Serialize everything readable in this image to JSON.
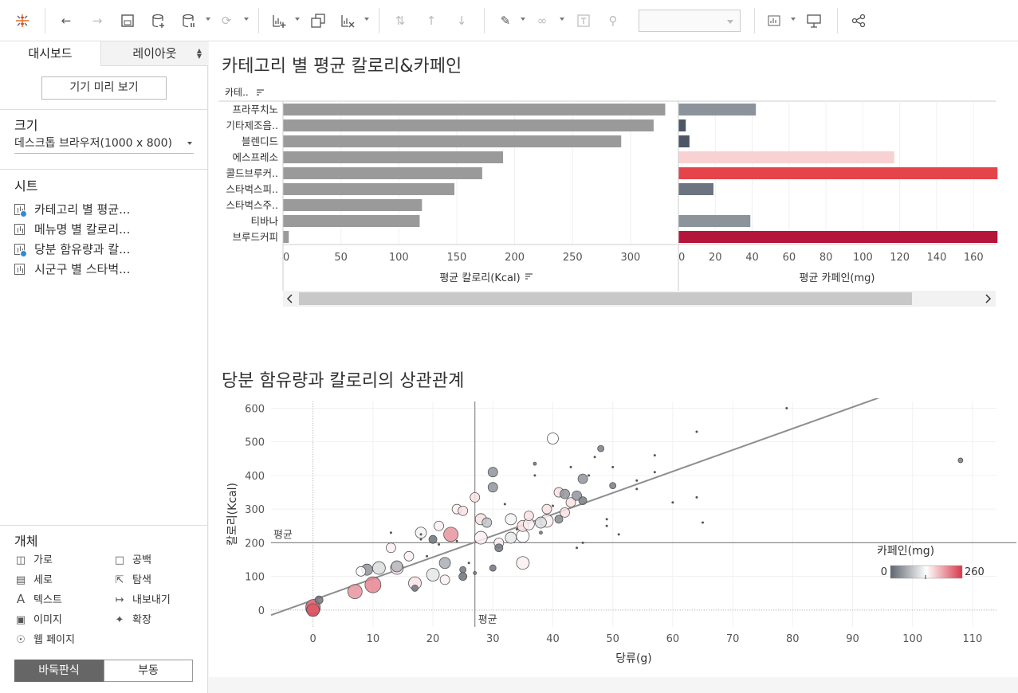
{
  "toolbar": {
    "icons": [
      "tableau-logo-icon",
      "undo-icon",
      "redo-icon",
      "save-icon",
      "new-datasource-icon",
      "pause-update-icon",
      "refresh-icon",
      "new-worksheet-icon",
      "duplicate-icon",
      "clear-icon",
      "swap-icon",
      "sort-asc-icon",
      "sort-desc-icon",
      "highlight-icon",
      "attach-icon",
      "text-label-icon",
      "pin-icon",
      "show-me-icon",
      "presentation-icon",
      "share-icon"
    ]
  },
  "sidebar": {
    "tab_dashboard": "대시보드",
    "tab_layout": "레이아웃",
    "device_preview": "기기 미리 보기",
    "size_label": "크기",
    "size_value": "데스크톱 브라우저(1000 x 800)",
    "sheets_label": "시트",
    "sheets": [
      "카테고리 별 평균...",
      "메뉴명 별 칼로리...",
      "당분 함유량과 칼...",
      "시군구 별 스타벅..."
    ],
    "objects_label": "개체",
    "objects": {
      "horizontal": "가로",
      "blank": "공백",
      "vertical": "세로",
      "navigation": "탐색",
      "text": "텍스트",
      "download": "내보내기",
      "image": "이미지",
      "extension": "확장",
      "webpage": "웹 페이지"
    },
    "tiled": "바둑판식",
    "floating": "부동"
  },
  "colors": {
    "accent": "#e5444b",
    "bar_gray": "#9a9a9a",
    "dark_red": "#b3153b",
    "legend_low": "#5f6670",
    "legend_high": "#d7384a"
  },
  "chart_data": [
    {
      "type": "bar",
      "title": "카테고리 별 평균 칼로리&카페인",
      "category_header": "카테..",
      "categories": [
        "프라푸치노",
        "기타제조음..",
        "블렌디드",
        "에스프레소",
        "콜드브루커..",
        "스타벅스피..",
        "스타벅스주..",
        "티바나",
        "브루드커피"
      ],
      "series": [
        {
          "name": "평균 칼로리(Kcal)",
          "values": [
            330,
            320,
            292,
            190,
            172,
            148,
            120,
            118,
            5
          ],
          "xlim": [
            0,
            340
          ],
          "ticks": [
            0,
            50,
            100,
            150,
            200,
            250,
            300
          ]
        },
        {
          "name": "평균 카페인(mg)",
          "values": [
            42,
            4,
            6,
            117,
            173,
            19,
            0,
            39,
            173
          ],
          "xlim": [
            0,
            172
          ],
          "ticks": [
            0,
            20,
            40,
            60,
            80,
            100,
            120,
            140,
            160
          ]
        }
      ],
      "xlabel_calorie": "평균 칼로리(Kcal)",
      "xlabel_caffeine": "평균 카페인(mg)"
    },
    {
      "type": "scatter",
      "title": "당분 함유량과 칼로리의 상관관계",
      "xlabel": "당류(g)",
      "ylabel": "칼로리(Kcal)",
      "xlim": [
        -7,
        114
      ],
      "ylim": [
        -50,
        620
      ],
      "xticks": [
        0,
        10,
        20,
        30,
        40,
        50,
        60,
        70,
        80,
        90,
        100,
        110
      ],
      "yticks": [
        0,
        100,
        200,
        300,
        400,
        500,
        600
      ],
      "ref_line_label": "평균",
      "ref_x": 27,
      "ref_y": 200,
      "trend": {
        "x0": -7,
        "y0": -15,
        "x1": 95,
        "y1": 635
      },
      "legend_title": "카페인(mg)",
      "legend_min": "0",
      "legend_max": "260",
      "points": [
        [
          0,
          5,
          260,
          9
        ],
        [
          0,
          10,
          220,
          9
        ],
        [
          0,
          0,
          240,
          8
        ],
        [
          1,
          30,
          0,
          5
        ],
        [
          7,
          55,
          200,
          9
        ],
        [
          8,
          115,
          10,
          6
        ],
        [
          9,
          120,
          40,
          7
        ],
        [
          10,
          75,
          210,
          10
        ],
        [
          11,
          125,
          100,
          8
        ],
        [
          13,
          185,
          20,
          6
        ],
        [
          13,
          230,
          0,
          1
        ],
        [
          14,
          125,
          30,
          8
        ],
        [
          14,
          130,
          70,
          7
        ],
        [
          16,
          160,
          20,
          6
        ],
        [
          17,
          80,
          150,
          8
        ],
        [
          17,
          65,
          0,
          4
        ],
        [
          18,
          230,
          120,
          7
        ],
        [
          18,
          210,
          0,
          1
        ],
        [
          18,
          225,
          0,
          1
        ],
        [
          19,
          160,
          0,
          1
        ],
        [
          20,
          105,
          110,
          8
        ],
        [
          20,
          210,
          10,
          5
        ],
        [
          21,
          250,
          20,
          6
        ],
        [
          21,
          195,
          0,
          1
        ],
        [
          22,
          140,
          60,
          7
        ],
        [
          22,
          90,
          20,
          6
        ],
        [
          23,
          225,
          200,
          9
        ],
        [
          24,
          300,
          20,
          6
        ],
        [
          24,
          205,
          0,
          1
        ],
        [
          25,
          295,
          30,
          6
        ],
        [
          25,
          100,
          10,
          5
        ],
        [
          25,
          120,
          0,
          4
        ],
        [
          26,
          140,
          0,
          1
        ],
        [
          27,
          335,
          30,
          6
        ],
        [
          27,
          110,
          0,
          2
        ],
        [
          28,
          215,
          140,
          8
        ],
        [
          28,
          270,
          150,
          7
        ],
        [
          29,
          260,
          80,
          6
        ],
        [
          30,
          410,
          40,
          6
        ],
        [
          30,
          365,
          40,
          6
        ],
        [
          30,
          125,
          0,
          4
        ],
        [
          31,
          185,
          0,
          5
        ],
        [
          31,
          200,
          20,
          6
        ],
        [
          32,
          315,
          0,
          1
        ],
        [
          33,
          270,
          120,
          7
        ],
        [
          33,
          215,
          110,
          7
        ],
        [
          34,
          240,
          0,
          1
        ],
        [
          35,
          220,
          130,
          8
        ],
        [
          35,
          140,
          140,
          8
        ],
        [
          35,
          250,
          150,
          7
        ],
        [
          36,
          280,
          30,
          6
        ],
        [
          36,
          255,
          140,
          7
        ],
        [
          37,
          400,
          0,
          1
        ],
        [
          37,
          435,
          0,
          2
        ],
        [
          38,
          230,
          0,
          2
        ],
        [
          38,
          260,
          100,
          7
        ],
        [
          39,
          300,
          30,
          6
        ],
        [
          39,
          265,
          140,
          8
        ],
        [
          40,
          510,
          130,
          7
        ],
        [
          40,
          310,
          0,
          1
        ],
        [
          41,
          350,
          30,
          6
        ],
        [
          41,
          270,
          30,
          5
        ],
        [
          42,
          290,
          30,
          6
        ],
        [
          42,
          345,
          40,
          6
        ],
        [
          43,
          320,
          30,
          6
        ],
        [
          43,
          425,
          0,
          1
        ],
        [
          44,
          340,
          40,
          6
        ],
        [
          44,
          185,
          0,
          1
        ],
        [
          45,
          325,
          20,
          5
        ],
        [
          45,
          390,
          40,
          6
        ],
        [
          45,
          200,
          0,
          1
        ],
        [
          46,
          400,
          0,
          1
        ],
        [
          47,
          455,
          0,
          1
        ],
        [
          48,
          480,
          20,
          4
        ],
        [
          49,
          250,
          0,
          1
        ],
        [
          49,
          270,
          0,
          1
        ],
        [
          50,
          370,
          20,
          4
        ],
        [
          50,
          425,
          0,
          1
        ],
        [
          51,
          225,
          0,
          1
        ],
        [
          54,
          385,
          0,
          1
        ],
        [
          54,
          360,
          0,
          1
        ],
        [
          57,
          460,
          0,
          1
        ],
        [
          57,
          410,
          0,
          1
        ],
        [
          60,
          320,
          0,
          1
        ],
        [
          64,
          530,
          0,
          1
        ],
        [
          64,
          335,
          0,
          1
        ],
        [
          65,
          260,
          0,
          1
        ],
        [
          79,
          600,
          0,
          1
        ],
        [
          108,
          445,
          20,
          3
        ]
      ]
    }
  ]
}
